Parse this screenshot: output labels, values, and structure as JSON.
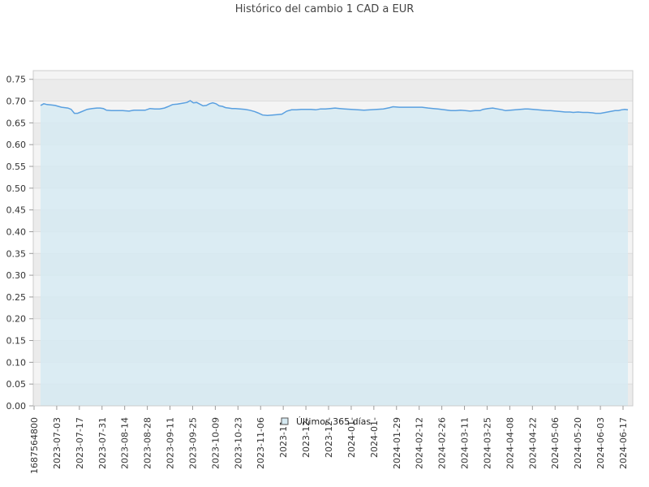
{
  "chart_data": {
    "type": "area",
    "title": "Histórico del cambio 1 CAD a EUR",
    "xlabel": "",
    "ylabel": "",
    "ylim": [
      0,
      0.77
    ],
    "y_ticks": [
      "0.00",
      "0.05",
      "0.10",
      "0.15",
      "0.20",
      "0.25",
      "0.30",
      "0.35",
      "0.40",
      "0.45",
      "0.50",
      "0.55",
      "0.60",
      "0.65",
      "0.70",
      "0.75"
    ],
    "x_tick_labels": [
      "1687564800",
      "2023-07-03",
      "2023-07-17",
      "2023-07-31",
      "2023-08-14",
      "2023-08-28",
      "2023-09-11",
      "2023-09-25",
      "2023-10-09",
      "2023-10-23",
      "2023-11-06",
      "2023-11-",
      "2023-12-",
      "2023-12-",
      "2024-01-",
      "2024-01-",
      "2024-01-29",
      "2024-02-12",
      "2024-02-26",
      "2024-03-11",
      "2024-03-25",
      "2024-04-08",
      "2024-04-22",
      "2024-05-06",
      "2024-05-20",
      "2024-06-03",
      "2024-06-17"
    ],
    "grid": true,
    "legend_position": "bottom-center",
    "series": [
      {
        "name": "Últimos 365 días",
        "x": [
          "2023-06-24",
          "2023-06-26",
          "2023-06-28",
          "2023-07-01",
          "2023-07-03",
          "2023-07-05",
          "2023-07-07",
          "2023-07-09",
          "2023-07-11",
          "2023-07-13",
          "2023-07-15",
          "2023-07-17",
          "2023-07-19",
          "2023-07-21",
          "2023-07-23",
          "2023-07-26",
          "2023-07-29",
          "2023-07-31",
          "2023-08-02",
          "2023-08-04",
          "2023-08-07",
          "2023-08-10",
          "2023-08-14",
          "2023-08-18",
          "2023-08-21",
          "2023-08-24",
          "2023-08-28",
          "2023-08-31",
          "2023-09-03",
          "2023-09-06",
          "2023-09-09",
          "2023-09-11",
          "2023-09-14",
          "2023-09-17",
          "2023-09-20",
          "2023-09-23",
          "2023-09-25",
          "2023-09-27",
          "2023-09-29",
          "2023-10-01",
          "2023-10-03",
          "2023-10-05",
          "2023-10-07",
          "2023-10-09",
          "2023-10-11",
          "2023-10-13",
          "2023-10-15",
          "2023-10-17",
          "2023-10-19",
          "2023-10-21",
          "2023-10-23",
          "2023-10-26",
          "2023-10-29",
          "2023-11-01",
          "2023-11-04",
          "2023-11-06",
          "2023-11-09",
          "2023-11-12",
          "2023-11-15",
          "2023-11-18",
          "2023-11-21",
          "2023-11-24",
          "2023-11-27",
          "2023-11-30",
          "2023-12-03",
          "2023-12-06",
          "2023-12-09",
          "2023-12-12",
          "2023-12-15",
          "2023-12-18",
          "2023-12-21",
          "2023-12-24",
          "2023-12-27",
          "2023-12-30",
          "2024-01-03",
          "2024-01-07",
          "2024-01-11",
          "2024-01-15",
          "2024-01-19",
          "2024-01-23",
          "2024-01-27",
          "2024-01-29",
          "2024-02-02",
          "2024-02-06",
          "2024-02-09",
          "2024-02-12",
          "2024-02-16",
          "2024-02-20",
          "2024-02-23",
          "2024-02-26",
          "2024-03-01",
          "2024-03-05",
          "2024-03-08",
          "2024-03-11",
          "2024-03-14",
          "2024-03-17",
          "2024-03-20",
          "2024-03-23",
          "2024-03-25",
          "2024-03-28",
          "2024-03-31",
          "2024-04-03",
          "2024-04-06",
          "2024-04-08",
          "2024-04-11",
          "2024-04-14",
          "2024-04-17",
          "2024-04-20",
          "2024-04-22",
          "2024-04-25",
          "2024-04-28",
          "2024-05-01",
          "2024-05-04",
          "2024-05-06",
          "2024-05-09",
          "2024-05-12",
          "2024-05-15",
          "2024-05-18",
          "2024-05-20",
          "2024-05-23",
          "2024-05-26",
          "2024-05-29",
          "2024-06-01",
          "2024-06-03",
          "2024-06-06",
          "2024-06-09",
          "2024-06-12",
          "2024-06-15",
          "2024-06-17",
          "2024-06-19",
          "2024-06-21",
          "2024-06-23"
        ],
        "values": [
          0.69,
          0.694,
          0.692,
          0.691,
          0.69,
          0.688,
          0.686,
          0.685,
          0.684,
          0.681,
          0.672,
          0.672,
          0.675,
          0.678,
          0.681,
          0.683,
          0.684,
          0.684,
          0.683,
          0.679,
          0.678,
          0.678,
          0.678,
          0.677,
          0.679,
          0.679,
          0.679,
          0.683,
          0.682,
          0.682,
          0.684,
          0.687,
          0.692,
          0.693,
          0.695,
          0.697,
          0.701,
          0.696,
          0.697,
          0.693,
          0.689,
          0.69,
          0.694,
          0.696,
          0.694,
          0.689,
          0.688,
          0.685,
          0.684,
          0.683,
          0.683,
          0.682,
          0.681,
          0.679,
          0.676,
          0.673,
          0.668,
          0.667,
          0.668,
          0.669,
          0.67,
          0.677,
          0.68,
          0.68,
          0.681,
          0.681,
          0.681,
          0.68,
          0.682,
          0.682,
          0.683,
          0.684,
          0.683,
          0.682,
          0.681,
          0.68,
          0.679,
          0.68,
          0.681,
          0.682,
          0.685,
          0.687,
          0.686,
          0.686,
          0.686,
          0.686,
          0.686,
          0.684,
          0.683,
          0.682,
          0.68,
          0.678,
          0.678,
          0.679,
          0.678,
          0.677,
          0.678,
          0.678,
          0.681,
          0.683,
          0.684,
          0.682,
          0.68,
          0.678,
          0.679,
          0.68,
          0.681,
          0.682,
          0.682,
          0.681,
          0.68,
          0.679,
          0.678,
          0.678,
          0.677,
          0.676,
          0.675,
          0.675,
          0.674,
          0.675,
          0.674,
          0.674,
          0.673,
          0.672,
          0.672,
          0.674,
          0.676,
          0.678,
          0.678,
          0.68,
          0.681,
          0.68
        ]
      }
    ],
    "colors": {
      "line": "#5aa0e0",
      "fill": "#d6eaf2",
      "band_light": "#f4f4f4",
      "band_dark": "#ebebeb",
      "grid": "#dddddd",
      "legend_box": "#d6eaf2"
    }
  }
}
